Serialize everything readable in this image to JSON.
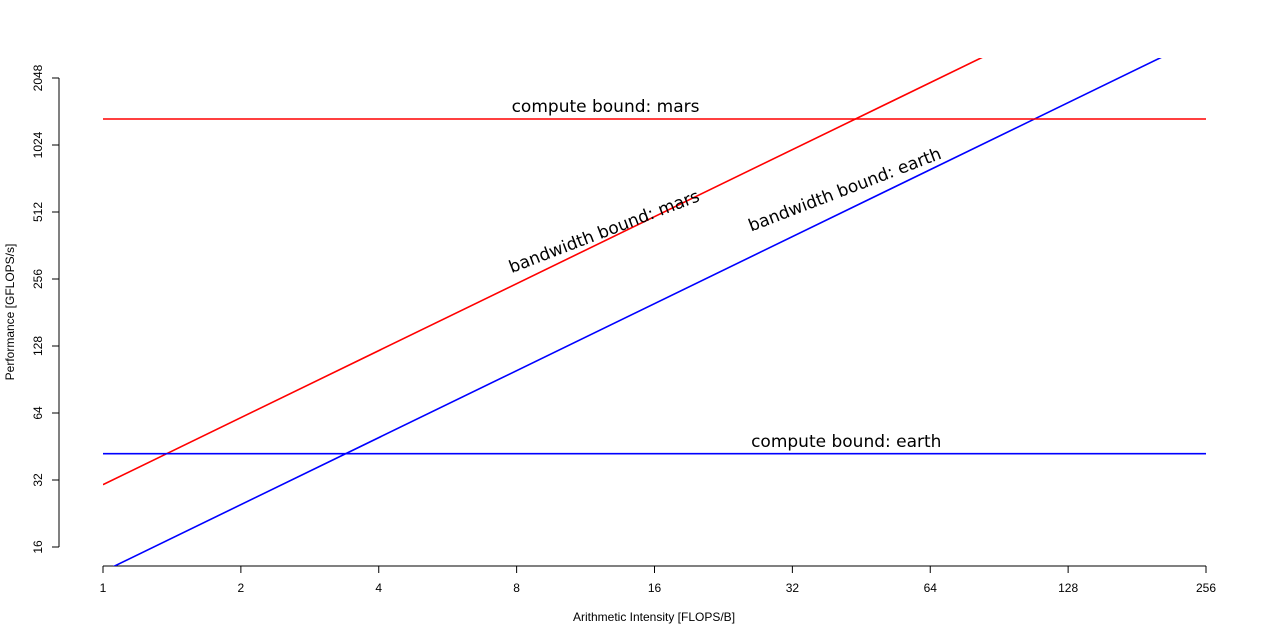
{
  "chart_data": {
    "type": "line",
    "title": "",
    "xlabel": "Arithmetic Intensity [FLOPS/B]",
    "ylabel": "Performance [GFLOPS/s]",
    "x_scale": "log2",
    "y_scale": "log2",
    "xlim": [
      1,
      256
    ],
    "ylim": [
      16,
      2048
    ],
    "x_ticks": [
      1,
      2,
      4,
      8,
      16,
      32,
      64,
      128,
      256
    ],
    "y_ticks": [
      16,
      32,
      64,
      128,
      256,
      512,
      1024,
      2048
    ],
    "grid": false,
    "legend": "none",
    "series": [
      {
        "id": "bw-mars",
        "kind": "bandwidth",
        "slope": 30.5,
        "color": "#ff0000"
      },
      {
        "id": "bw-earth",
        "kind": "bandwidth",
        "slope": 12.4,
        "color": "#0000ff"
      },
      {
        "id": "cb-mars",
        "kind": "compute",
        "value": 1340,
        "color": "#ff0000"
      },
      {
        "id": "cb-earth",
        "kind": "compute",
        "value": 42,
        "color": "#0000ff"
      }
    ],
    "annotations": [
      {
        "id": "cb-mars-label",
        "text": "compute bound: mars",
        "x": 7.8,
        "y": 1440,
        "rotation": 0
      },
      {
        "id": "bw-mars-label",
        "text": "bandwidth bound: mars",
        "x": 7.8,
        "y": 272,
        "rotation": -21
      },
      {
        "id": "bw-earth-label",
        "text": "bandwidth bound: earth",
        "x": 26,
        "y": 418,
        "rotation": -21
      },
      {
        "id": "cb-earth-label",
        "text": "compute bound: earth",
        "x": 26,
        "y": 45,
        "rotation": 0
      }
    ]
  }
}
